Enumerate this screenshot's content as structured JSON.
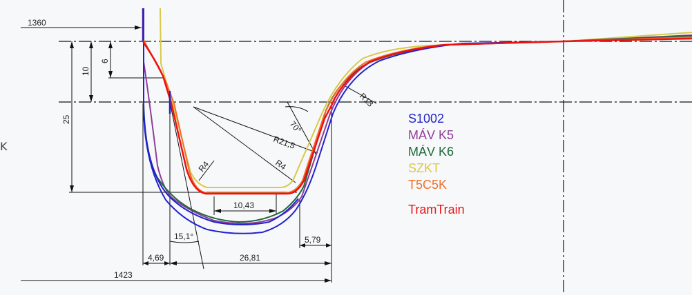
{
  "dimensions": {
    "d1360": "1360",
    "d1423": "1423",
    "d10": "10",
    "d6": "6",
    "d25": "25",
    "d10_43": "10,43",
    "d15_1": "15,1°",
    "d4_69": "4,69",
    "d26_81": "26,81",
    "d5_79": "5,79",
    "r4_left": "R4",
    "r21_5": "R21,5",
    "r4_right": "R4",
    "r13": "R13",
    "a70": "70°"
  },
  "legend": [
    {
      "label": "S1002",
      "color": "#2222cc"
    },
    {
      "label": "MÁV K5",
      "color": "#8e3d97"
    },
    {
      "label": "MÁV K6",
      "color": "#1e6a3a"
    },
    {
      "label": "SZKT",
      "color": "#d9c84a"
    },
    {
      "label": "T5C5K",
      "color": "#f0702a"
    },
    {
      "label": "TramTrain",
      "color": "#ee1111"
    }
  ],
  "edge_glyph": "K"
}
